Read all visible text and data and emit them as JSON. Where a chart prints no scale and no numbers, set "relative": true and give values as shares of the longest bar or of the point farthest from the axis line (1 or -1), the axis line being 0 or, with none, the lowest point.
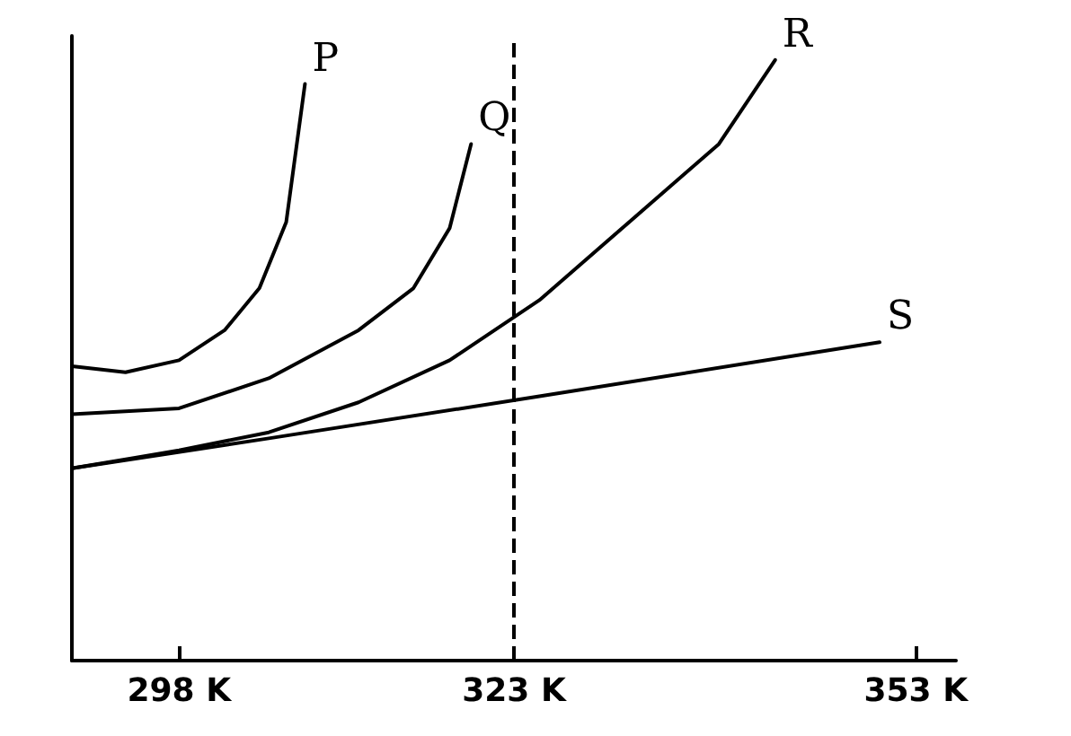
{
  "chart_data": {
    "type": "line",
    "relative": true,
    "xlim": [
      290,
      356
    ],
    "xticks": [
      {
        "value": 298,
        "label": "298 K"
      },
      {
        "value": 323,
        "label": "323 K"
      },
      {
        "value": 353,
        "label": "353 K"
      }
    ],
    "tick_labels": "x",
    "grid": false,
    "legend": false,
    "marker": "none",
    "line_style": "solid",
    "series": [
      {
        "name": "P",
        "color": "#000000",
        "x": [
          290,
          294,
          298,
          301.4,
          304,
          306,
          307.4
        ],
        "values": [
          0.49,
          0.48,
          0.5,
          0.55,
          0.62,
          0.73,
          0.96
        ]
      },
      {
        "name": "Q",
        "color": "#000000",
        "x": [
          290,
          298,
          304.7,
          311.4,
          315.5,
          318.2,
          319.8
        ],
        "values": [
          0.41,
          0.42,
          0.47,
          0.55,
          0.62,
          0.72,
          0.86
        ]
      },
      {
        "name": "R",
        "color": "#000000",
        "x": [
          290,
          298,
          304.7,
          311.4,
          318.2,
          324.9,
          331.6,
          338.3,
          342.5
        ],
        "values": [
          0.32,
          0.35,
          0.38,
          0.43,
          0.5,
          0.6,
          0.73,
          0.86,
          1
        ]
      },
      {
        "name": "S",
        "color": "#000000",
        "x": [
          290,
          304.7,
          324.9,
          350.3
        ],
        "values": [
          0.32,
          0.37,
          0.44,
          0.53
        ]
      }
    ],
    "ref_lines": [
      {
        "axis": "x",
        "value": 323,
        "line_style": "dashed",
        "color": "#000000"
      }
    ]
  }
}
